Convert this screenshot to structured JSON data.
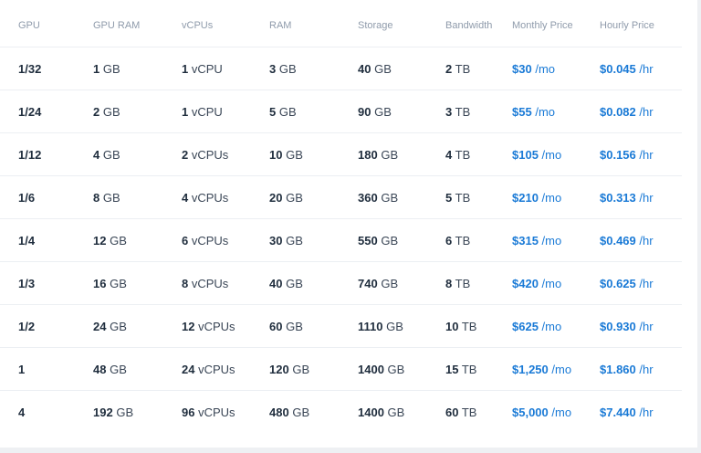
{
  "headers": [
    "GPU",
    "GPU RAM",
    "vCPUs",
    "RAM",
    "Storage",
    "Bandwidth",
    "Monthly Price",
    "Hourly Price"
  ],
  "rows": [
    {
      "gpu": "1/32",
      "gpu_ram": {
        "num": "1",
        "unit": "GB"
      },
      "vcpus": {
        "num": "1",
        "unit": "vCPU"
      },
      "ram": {
        "num": "3",
        "unit": "GB"
      },
      "storage": {
        "num": "40",
        "unit": "GB"
      },
      "bandwidth": {
        "num": "2",
        "unit": "TB"
      },
      "monthly": {
        "num": "$30",
        "unit": "/mo"
      },
      "hourly": {
        "num": "$0.045",
        "unit": "/hr"
      }
    },
    {
      "gpu": "1/24",
      "gpu_ram": {
        "num": "2",
        "unit": "GB"
      },
      "vcpus": {
        "num": "1",
        "unit": "vCPU"
      },
      "ram": {
        "num": "5",
        "unit": "GB"
      },
      "storage": {
        "num": "90",
        "unit": "GB"
      },
      "bandwidth": {
        "num": "3",
        "unit": "TB"
      },
      "monthly": {
        "num": "$55",
        "unit": "/mo"
      },
      "hourly": {
        "num": "$0.082",
        "unit": "/hr"
      }
    },
    {
      "gpu": "1/12",
      "gpu_ram": {
        "num": "4",
        "unit": "GB"
      },
      "vcpus": {
        "num": "2",
        "unit": "vCPUs"
      },
      "ram": {
        "num": "10",
        "unit": "GB"
      },
      "storage": {
        "num": "180",
        "unit": "GB"
      },
      "bandwidth": {
        "num": "4",
        "unit": "TB"
      },
      "monthly": {
        "num": "$105",
        "unit": "/mo"
      },
      "hourly": {
        "num": "$0.156",
        "unit": "/hr"
      }
    },
    {
      "gpu": "1/6",
      "gpu_ram": {
        "num": "8",
        "unit": "GB"
      },
      "vcpus": {
        "num": "4",
        "unit": "vCPUs"
      },
      "ram": {
        "num": "20",
        "unit": "GB"
      },
      "storage": {
        "num": "360",
        "unit": "GB"
      },
      "bandwidth": {
        "num": "5",
        "unit": "TB"
      },
      "monthly": {
        "num": "$210",
        "unit": "/mo"
      },
      "hourly": {
        "num": "$0.313",
        "unit": "/hr"
      }
    },
    {
      "gpu": "1/4",
      "gpu_ram": {
        "num": "12",
        "unit": "GB"
      },
      "vcpus": {
        "num": "6",
        "unit": "vCPUs"
      },
      "ram": {
        "num": "30",
        "unit": "GB"
      },
      "storage": {
        "num": "550",
        "unit": "GB"
      },
      "bandwidth": {
        "num": "6",
        "unit": "TB"
      },
      "monthly": {
        "num": "$315",
        "unit": "/mo"
      },
      "hourly": {
        "num": "$0.469",
        "unit": "/hr"
      }
    },
    {
      "gpu": "1/3",
      "gpu_ram": {
        "num": "16",
        "unit": "GB"
      },
      "vcpus": {
        "num": "8",
        "unit": "vCPUs"
      },
      "ram": {
        "num": "40",
        "unit": "GB"
      },
      "storage": {
        "num": "740",
        "unit": "GB"
      },
      "bandwidth": {
        "num": "8",
        "unit": "TB"
      },
      "monthly": {
        "num": "$420",
        "unit": "/mo"
      },
      "hourly": {
        "num": "$0.625",
        "unit": "/hr"
      }
    },
    {
      "gpu": "1/2",
      "gpu_ram": {
        "num": "24",
        "unit": "GB"
      },
      "vcpus": {
        "num": "12",
        "unit": "vCPUs"
      },
      "ram": {
        "num": "60",
        "unit": "GB"
      },
      "storage": {
        "num": "1110",
        "unit": "GB"
      },
      "bandwidth": {
        "num": "10",
        "unit": "TB"
      },
      "monthly": {
        "num": "$625",
        "unit": "/mo"
      },
      "hourly": {
        "num": "$0.930",
        "unit": "/hr"
      }
    },
    {
      "gpu": "1",
      "gpu_ram": {
        "num": "48",
        "unit": "GB"
      },
      "vcpus": {
        "num": "24",
        "unit": "vCPUs"
      },
      "ram": {
        "num": "120",
        "unit": "GB"
      },
      "storage": {
        "num": "1400",
        "unit": "GB"
      },
      "bandwidth": {
        "num": "15",
        "unit": "TB"
      },
      "monthly": {
        "num": "$1,250",
        "unit": "/mo"
      },
      "hourly": {
        "num": "$1.860",
        "unit": "/hr"
      }
    },
    {
      "gpu": "4",
      "gpu_ram": {
        "num": "192",
        "unit": "GB"
      },
      "vcpus": {
        "num": "96",
        "unit": "vCPUs"
      },
      "ram": {
        "num": "480",
        "unit": "GB"
      },
      "storage": {
        "num": "1400",
        "unit": "GB"
      },
      "bandwidth": {
        "num": "60",
        "unit": "TB"
      },
      "monthly": {
        "num": "$5,000",
        "unit": "/mo"
      },
      "hourly": {
        "num": "$7.440",
        "unit": "/hr"
      }
    }
  ],
  "colors": {
    "accent": "#1a7ad6",
    "header_text": "#8f9bab",
    "body_text": "#1f2d3d",
    "divider": "#eceff3"
  }
}
